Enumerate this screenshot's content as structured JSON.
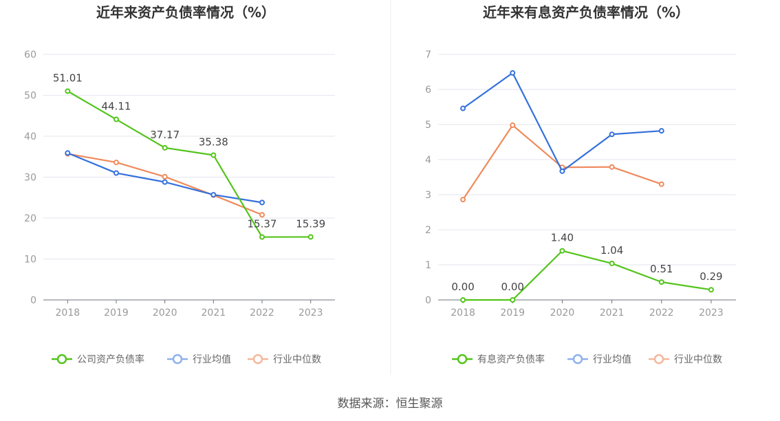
{
  "source": "数据来源：恒生聚源",
  "chart_data": [
    {
      "type": "line",
      "title": "近年来资产负债率情况（%）",
      "categories": [
        "2018",
        "2019",
        "2020",
        "2021",
        "2022",
        "2023"
      ],
      "ylim": [
        0,
        60
      ],
      "yticks": [
        0,
        10,
        20,
        30,
        40,
        50,
        60
      ],
      "legend_position": "bottom",
      "series": [
        {
          "name": "公司资产负债率",
          "color": "#52c41a",
          "values": [
            51.01,
            44.11,
            37.17,
            35.38,
            15.37,
            15.39
          ],
          "show_labels": true,
          "labels": [
            "51.01",
            "44.11",
            "37.17",
            "35.38",
            "15.37",
            "15.39"
          ]
        },
        {
          "name": "行业均值",
          "color": "#3370dc",
          "values": [
            35.9,
            31.0,
            28.8,
            25.7,
            23.8,
            null
          ],
          "show_labels": false
        },
        {
          "name": "行业中位数",
          "color": "#ef8a5b",
          "values": [
            35.7,
            33.6,
            30.1,
            25.6,
            20.8,
            null
          ],
          "show_labels": false
        }
      ]
    },
    {
      "type": "line",
      "title": "近年来有息资产负债率情况（%）",
      "categories": [
        "2018",
        "2019",
        "2020",
        "2021",
        "2022",
        "2023"
      ],
      "ylim": [
        0,
        7
      ],
      "yticks": [
        0,
        1,
        2,
        3,
        4,
        5,
        6,
        7
      ],
      "legend_position": "bottom",
      "series": [
        {
          "name": "有息资产负债率",
          "color": "#52c41a",
          "values": [
            0.0,
            0.0,
            1.4,
            1.04,
            0.51,
            0.29
          ],
          "show_labels": true,
          "labels": [
            "0.00",
            "0.00",
            "1.40",
            "1.04",
            "0.51",
            "0.29"
          ]
        },
        {
          "name": "行业均值",
          "color": "#3370dc",
          "values": [
            5.46,
            6.47,
            3.67,
            4.72,
            4.82,
            null
          ],
          "show_labels": false
        },
        {
          "name": "行业中位数",
          "color": "#ef8a5b",
          "values": [
            2.86,
            4.98,
            3.78,
            3.79,
            3.3,
            null
          ],
          "show_labels": false
        }
      ]
    }
  ]
}
